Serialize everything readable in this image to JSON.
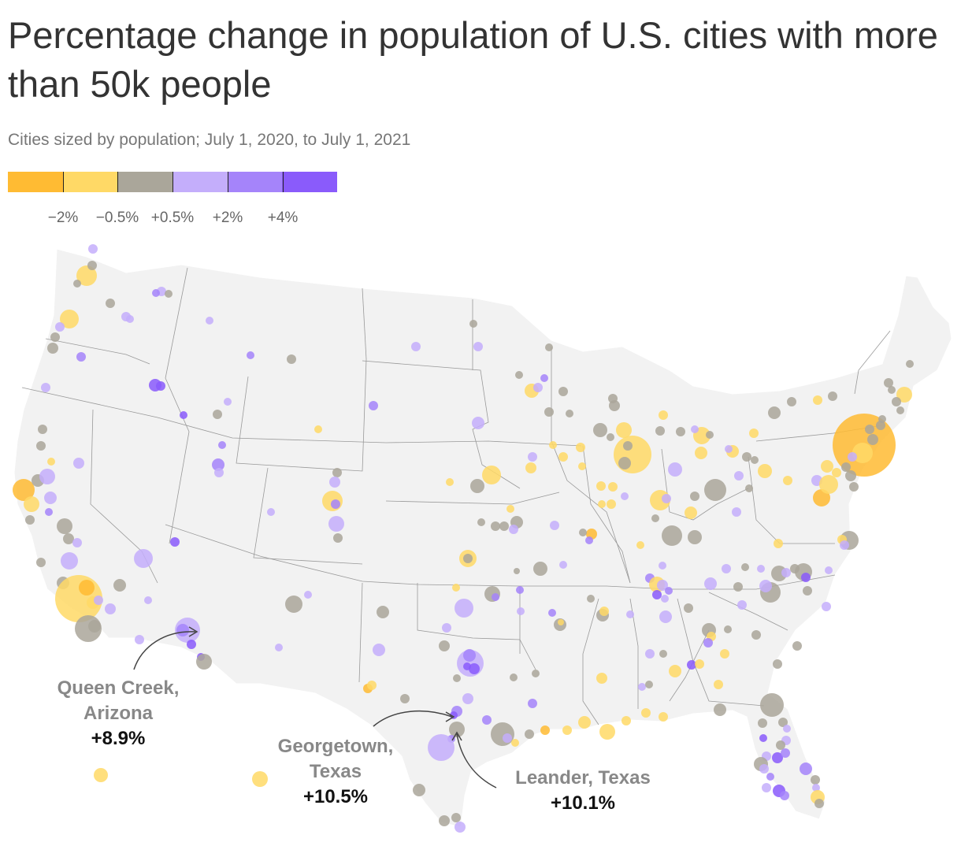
{
  "title": "Percentage change in population of U.S. cities with more than 50k people",
  "subtitle": "Cities sized by population; July 1, 2020, to July 1, 2021",
  "colors": {
    "strong_decline": "#ffbb33",
    "decline": "#ffd966",
    "flat": "#aaa69a",
    "growth": "#c4aefb",
    "strong_growth": "#a584fa",
    "fastest_growth": "#8a5bfb",
    "land": "#f2f2f2",
    "border": "#888888"
  },
  "legend": {
    "segments": [
      "strong_decline",
      "decline",
      "flat",
      "growth",
      "strong_growth",
      "fastest_growth"
    ],
    "labels": [
      "−2%",
      "−0.5%",
      "+0.5%",
      "+2%",
      "+4%"
    ]
  },
  "annotations": [
    {
      "name_lines": [
        "Queen Creek,",
        "Arizona"
      ],
      "value": "+8.9%"
    },
    {
      "name_lines": [
        "Georgetown,",
        "Texas"
      ],
      "value": "+10.5%"
    },
    {
      "name_lines": [
        "Leander, Texas"
      ],
      "value": "+10.1%"
    }
  ]
}
